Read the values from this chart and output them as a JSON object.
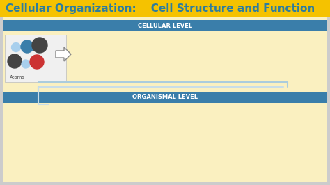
{
  "title": "Cellular Organization:    Cell Structure and Function",
  "title_bg": "#F5C200",
  "title_color": "#2E7D9E",
  "title_fontsize": 11,
  "cellular_label": "CELLULAR LEVEL",
  "organismal_label": "ORGANISMAL LEVEL",
  "banner_color": "#3A7EAA",
  "banner_text_color": "#FFFFFF",
  "bg_color": "#FAF0C0",
  "atoms_label": "Atoms",
  "atoms_label_color": "#444444",
  "outer_bg": "#CCCCCC",
  "dot_light_blue": "#A8CFED",
  "dot_blue": "#3A7EAA",
  "dot_dark": "#444444",
  "dot_red": "#CC3333",
  "connector_color": "#AACCDD",
  "connector_color2": "#C8DDE8"
}
